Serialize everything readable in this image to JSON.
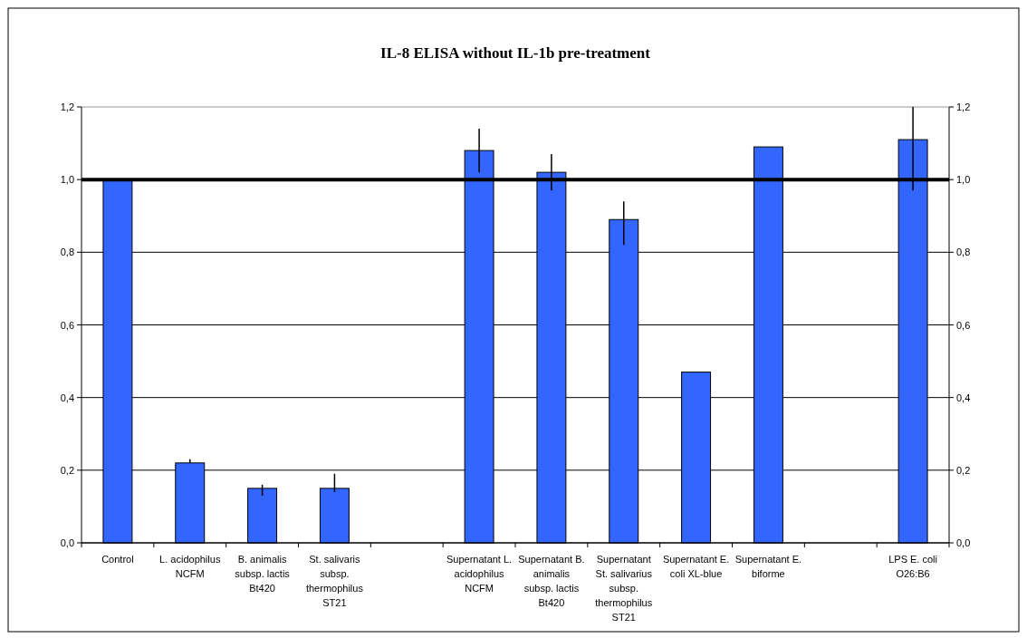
{
  "chart_data": {
    "type": "bar",
    "title": "IL-8 ELISA without IL-1b pre-treatment",
    "categories": [
      "Control",
      "L. acidophilus NCFM",
      "B. animalis subsp. lactis Bt420",
      "St. salivaris subsp. thermophilus ST21",
      null,
      "Supernatant L. acidophilus NCFM",
      "Supernatant B. animalis subsp. lactis Bt420",
      "Supernatant St. salivarius subsp. thermophilus ST21",
      "Supernatant E. coli XL-blue",
      "Supernatant E. biforme",
      null,
      "LPS E. coli O26:B6"
    ],
    "values": [
      1.0,
      0.22,
      0.15,
      0.15,
      null,
      1.08,
      1.02,
      0.89,
      0.47,
      1.09,
      null,
      1.11
    ],
    "errors": [
      null,
      [
        0.22,
        0.23
      ],
      [
        0.13,
        0.16
      ],
      [
        0.14,
        0.19
      ],
      null,
      [
        1.02,
        1.14
      ],
      [
        0.97,
        1.07
      ],
      [
        0.82,
        0.94
      ],
      null,
      null,
      null,
      [
        0.97,
        1.2
      ]
    ],
    "color": "#3366ff",
    "ylim": [
      0,
      1.2
    ],
    "yticks": [
      {
        "value": 0,
        "label": "0,0"
      },
      {
        "value": 0.2,
        "label": "0,2"
      },
      {
        "value": 0.4,
        "label": "0,4"
      },
      {
        "value": 0.6,
        "label": "0,6"
      },
      {
        "value": 0.8,
        "label": "0,8"
      },
      {
        "value": 1.0,
        "label": "1,0"
      },
      {
        "value": 1.2,
        "label": "1,2"
      }
    ],
    "y2lim": [
      0,
      1.2
    ],
    "y2ticks": [
      {
        "value": 0,
        "label": "0,0"
      },
      {
        "value": 0.2,
        "label": "0,2"
      },
      {
        "value": 0.4,
        "label": "0,4"
      },
      {
        "value": 0.6,
        "label": "0,6"
      },
      {
        "value": 0.8,
        "label": "0,8"
      },
      {
        "value": 1.0,
        "label": "1,0"
      },
      {
        "value": 1.2,
        "label": "1,2"
      }
    ],
    "ref_lines": [
      {
        "axis": "y",
        "value": 1.0,
        "color": "#000000"
      }
    ],
    "grid": "y"
  }
}
